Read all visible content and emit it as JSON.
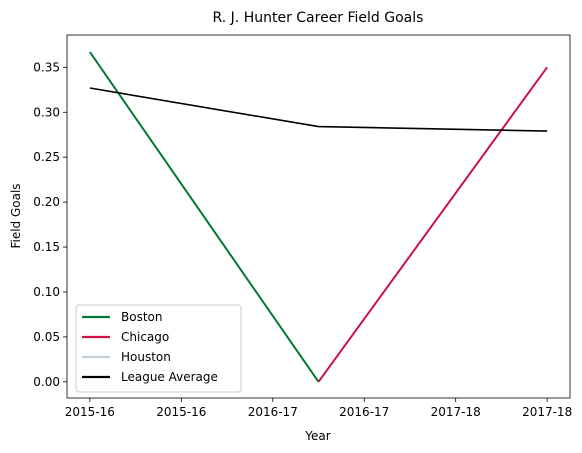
{
  "chart_data": {
    "type": "line",
    "title": "R. J. Hunter Career Field Goals",
    "xlabel": "Year",
    "ylabel": "Field Goals",
    "x_ticks": [
      "2015-16",
      "2015-16",
      "2016-17",
      "2016-17",
      "2017-18",
      "2017-18"
    ],
    "y_ticks": [
      "0.00",
      "0.05",
      "0.10",
      "0.15",
      "0.20",
      "0.25",
      "0.30",
      "0.35"
    ],
    "ylim": [
      -0.018,
      0.386
    ],
    "grid": false,
    "legend_position": "lower-left",
    "series": [
      {
        "name": "Boston",
        "color": "#007a33",
        "points": [
          {
            "x": "2015-16",
            "y": 0.367
          },
          {
            "x": "2016-17",
            "y": 0.0
          }
        ]
      },
      {
        "name": "Chicago",
        "color": "#ce1141",
        "points": [
          {
            "x": "2016-17",
            "y": 0.0
          },
          {
            "x": "2017-18",
            "y": 0.35
          }
        ]
      },
      {
        "name": "Houston",
        "color": "#c4ced4",
        "points": []
      },
      {
        "name": "League Average",
        "color": "#000000",
        "points": [
          {
            "x": "2015-16",
            "y": 0.327
          },
          {
            "x": "2016-17",
            "y": 0.284
          },
          {
            "x": "2017-18",
            "y": 0.279
          }
        ]
      }
    ]
  }
}
